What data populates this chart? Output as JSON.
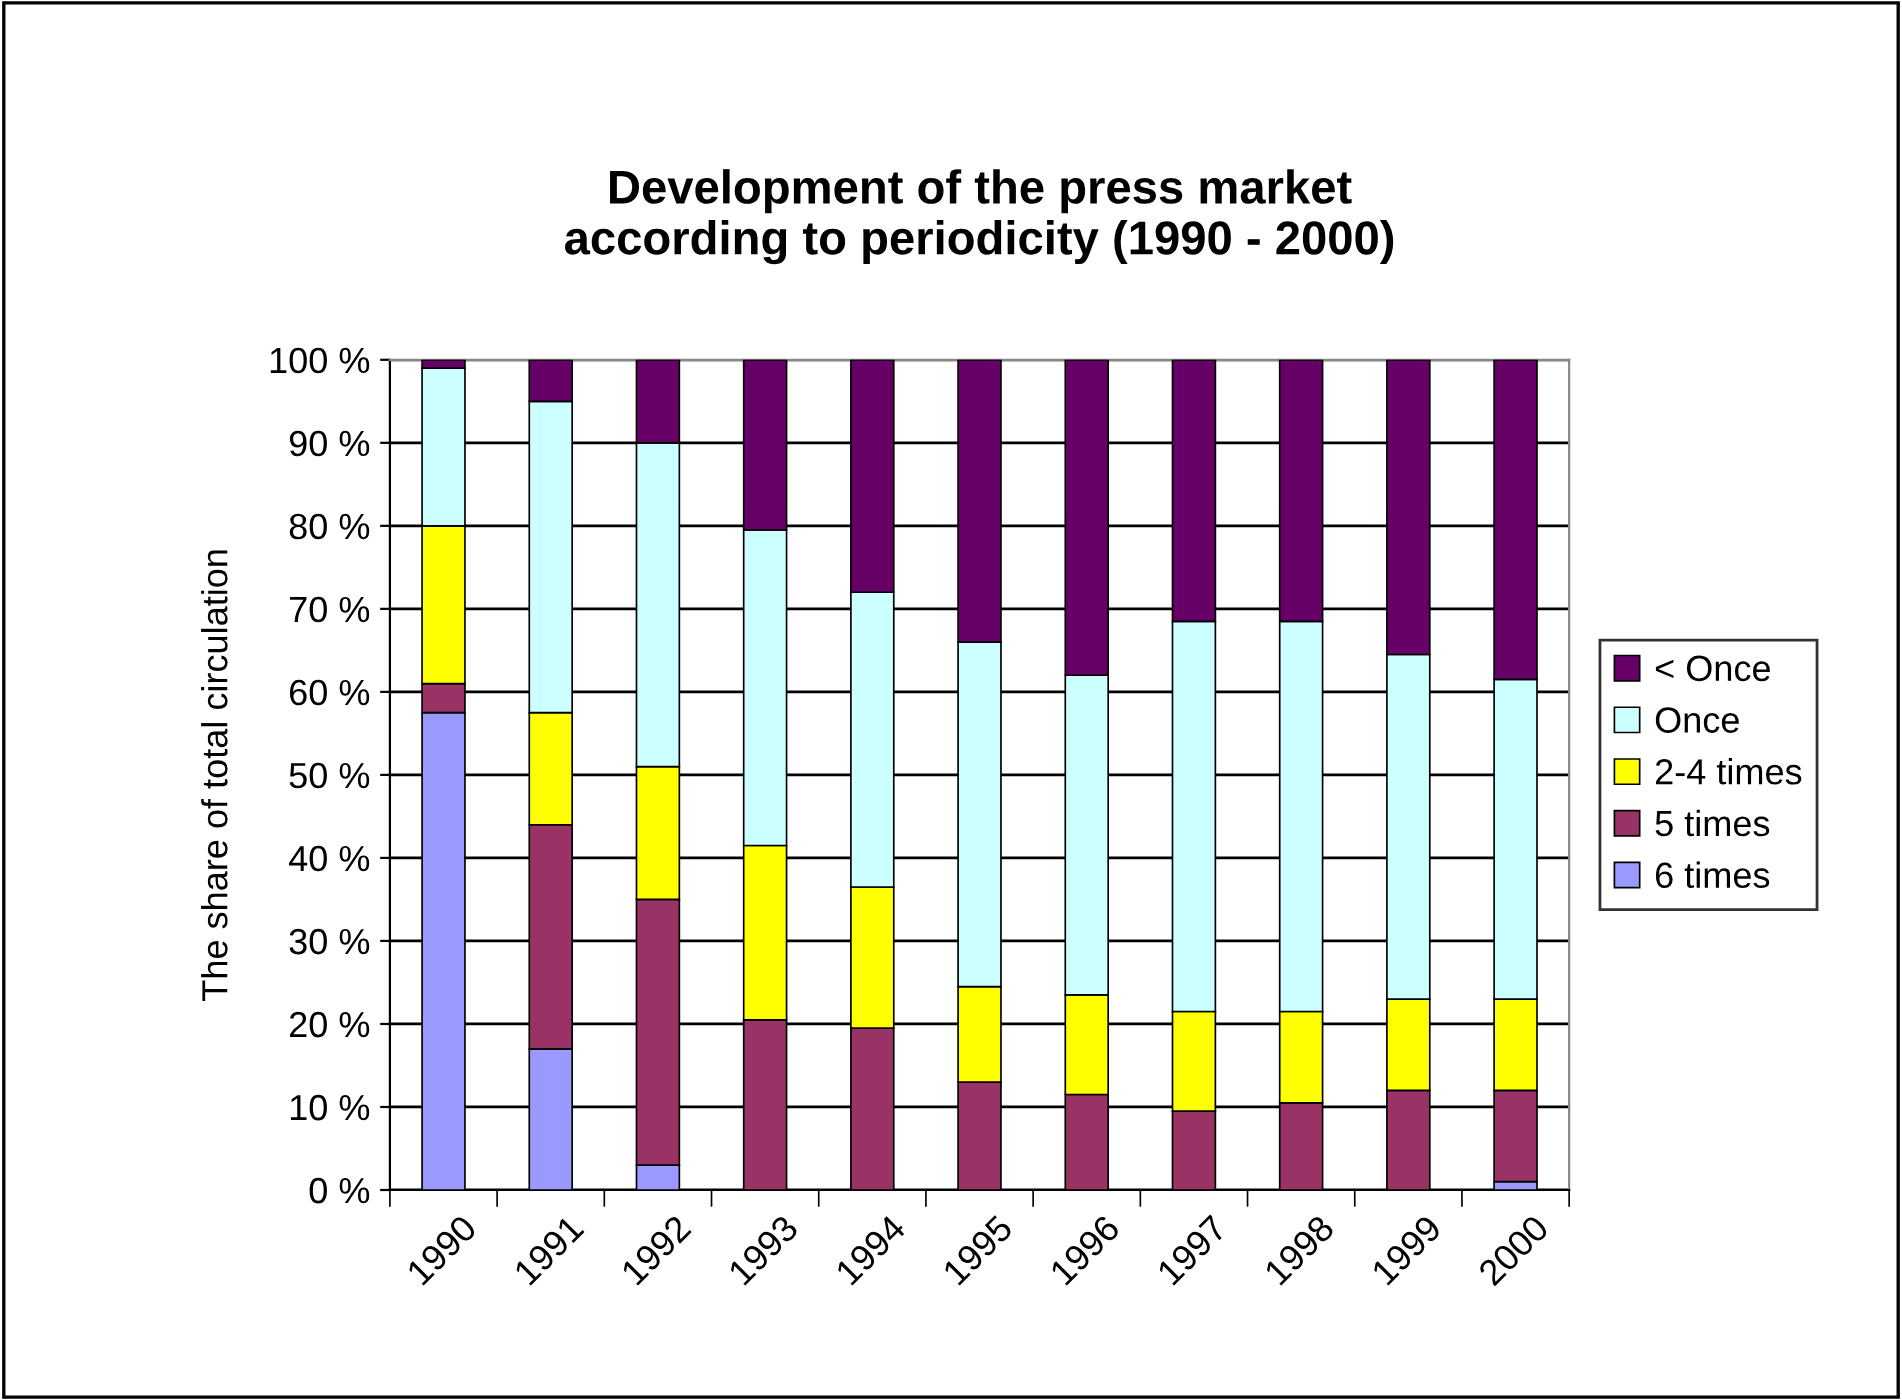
{
  "chart_data": {
    "type": "bar",
    "title": "Development of the press market\naccording to periodicity (1990 - 2000)",
    "ylabel": "The share of total circulation",
    "stacked": true,
    "categories": [
      "1990",
      "1991",
      "1992",
      "1993",
      "1994",
      "1995",
      "1996",
      "1997",
      "1998",
      "1999",
      "2000"
    ],
    "series": [
      {
        "name": "6 times",
        "color": "#9999ff",
        "values": [
          57.5,
          17,
          3,
          0,
          0,
          0,
          0,
          0,
          0,
          0,
          1
        ]
      },
      {
        "name": "5 times",
        "color": "#993366",
        "values": [
          3.5,
          27,
          32,
          20.5,
          19.5,
          13,
          11.5,
          9.5,
          10.5,
          12,
          11
        ]
      },
      {
        "name": "2-4 times",
        "color": "#ffff00",
        "values": [
          19,
          13.5,
          16,
          21,
          17,
          11.5,
          12,
          12,
          11,
          11,
          11
        ]
      },
      {
        "name": "Once",
        "color": "#ccffff",
        "values": [
          19,
          37.5,
          39,
          38,
          35.5,
          41.5,
          38.5,
          47,
          47,
          41.5,
          38.5
        ]
      },
      {
        "name": "< Once",
        "color": "#660066",
        "values": [
          1,
          5,
          10,
          20.5,
          28,
          34,
          38,
          31.5,
          31.5,
          35.5,
          38.5
        ]
      }
    ],
    "ylim": [
      0,
      100
    ],
    "yticks": [
      {
        "value": 0,
        "label": "0 %"
      },
      {
        "value": 10,
        "label": "10 %"
      },
      {
        "value": 20,
        "label": "20 %"
      },
      {
        "value": 30,
        "label": "30 %"
      },
      {
        "value": 40,
        "label": "40 %"
      },
      {
        "value": 50,
        "label": "50 %"
      },
      {
        "value": 60,
        "label": "60 %"
      },
      {
        "value": 70,
        "label": "70 %"
      },
      {
        "value": 80,
        "label": "80 %"
      },
      {
        "value": 90,
        "label": "90 %"
      },
      {
        "value": 100,
        "label": "100 %"
      }
    ],
    "grid": "y",
    "legend": "right"
  }
}
